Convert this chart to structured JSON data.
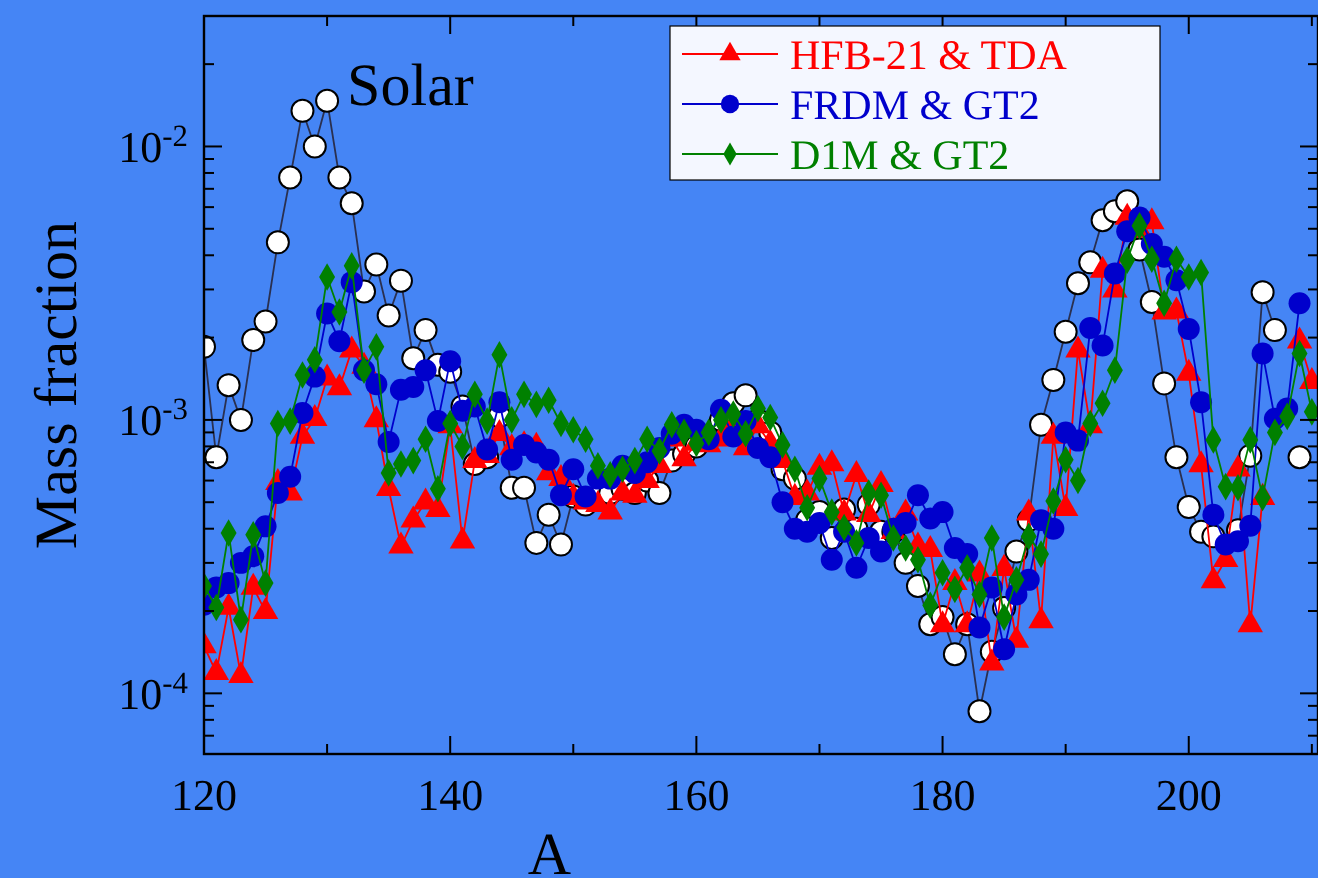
{
  "chart_data": {
    "type": "line",
    "xlabel": "A",
    "ylabel": "Mass fraction",
    "log": "y",
    "grid": false,
    "legend": "top right",
    "xlim": [
      120,
      210.5
    ],
    "ylim": [
      6e-05,
      0.03
    ],
    "xticks": [
      120,
      {
        "value": 130,
        "label": null
      },
      140,
      {
        "value": 150,
        "label": null
      },
      160,
      {
        "value": 170,
        "label": null
      },
      180,
      {
        "value": 190,
        "label": null
      },
      200,
      {
        "value": 210,
        "label": null
      }
    ],
    "yticks": [
      {
        "value": 6e-05,
        "label": null
      },
      {
        "value": 7e-05,
        "label": null
      },
      {
        "value": 8e-05,
        "label": null
      },
      {
        "value": 9e-05,
        "label": null
      },
      {
        "value": 0.0001,
        "label": "10$^{-4}$"
      },
      {
        "value": 0.0002,
        "label": null
      },
      {
        "value": 0.0003,
        "label": null
      },
      {
        "value": 0.0004,
        "label": null
      },
      {
        "value": 0.0005,
        "label": null
      },
      {
        "value": 0.0006,
        "label": null
      },
      {
        "value": 0.0007,
        "label": null
      },
      {
        "value": 0.0008,
        "label": null
      },
      {
        "value": 0.0009,
        "label": null
      },
      {
        "value": 0.001,
        "label": "10$^{-3}$"
      },
      {
        "value": 0.002,
        "label": null
      },
      {
        "value": 0.003,
        "label": null
      },
      {
        "value": 0.004,
        "label": null
      },
      {
        "value": 0.005,
        "label": null
      },
      {
        "value": 0.006,
        "label": null
      },
      {
        "value": 0.007,
        "label": null
      },
      {
        "value": 0.008,
        "label": null
      },
      {
        "value": 0.009,
        "label": null
      },
      {
        "value": 0.01,
        "label": "10$^{-2}$"
      },
      {
        "value": 0.02,
        "label": null
      },
      {
        "value": 0.03,
        "label": null
      }
    ],
    "x": [
      120,
      121,
      122,
      123,
      124,
      125,
      126,
      127,
      128,
      129,
      130,
      131,
      132,
      133,
      134,
      135,
      136,
      137,
      138,
      139,
      140,
      141,
      142,
      143,
      144,
      145,
      146,
      147,
      148,
      149,
      150,
      151,
      152,
      153,
      154,
      155,
      156,
      157,
      158,
      159,
      160,
      161,
      162,
      163,
      164,
      165,
      166,
      167,
      168,
      169,
      170,
      171,
      172,
      173,
      174,
      175,
      176,
      177,
      178,
      179,
      180,
      181,
      182,
      183,
      184,
      185,
      186,
      187,
      188,
      189,
      190,
      191,
      192,
      193,
      194,
      195,
      196,
      197,
      198,
      199,
      200,
      201,
      202,
      203,
      204,
      205,
      206,
      207,
      208,
      209,
      210
    ],
    "annotations": [
      {
        "text": "Solar",
        "x": 130,
        "y": 0.0147
      }
    ],
    "series": [
      {
        "marker": "circle",
        "color": "#ffffff",
        "values": [
          0.00185,
          0.00073,
          0.00134,
          0.001,
          0.00196,
          0.00229,
          0.00446,
          0.0077,
          0.0135,
          0.01,
          0.0147,
          0.0077,
          0.0062,
          0.00295,
          0.0037,
          0.00241,
          0.00323,
          0.00168,
          0.00213,
          0.00159,
          0.0015,
          0.00112,
          0.00069,
          0.00073,
          0.00103,
          0.000565,
          0.000565,
          0.000355,
          0.00045,
          0.00035,
          0.000525,
          0.00049,
          0.00052,
          0.00054,
          0.00056,
          0.00054,
          0.0006,
          0.00054,
          0.00071,
          0.00075,
          0.0008,
          0.00085,
          0.001,
          0.00115,
          0.00123,
          0.001,
          0.0009,
          0.00066,
          0.00061,
          0.00043,
          0.00046,
          0.00037,
          0.00047,
          0.0004,
          0.00049,
          0.00039,
          0.00039,
          0.0003,
          0.000247,
          0.000179,
          0.00019,
          0.000139,
          0.000179,
          8.6e-05,
          0.000142,
          0.000205,
          0.00033,
          0.00043,
          0.00096,
          0.0014,
          0.0021,
          0.00316,
          0.00377,
          0.00537,
          0.0058,
          0.0063,
          0.0042,
          0.0027,
          0.00136,
          0.00073,
          0.00048,
          0.00039,
          0.000375,
          null,
          0.000395,
          0.00074,
          0.00293,
          0.00213,
          null,
          0.00073,
          null
        ]
      },
      {
        "name": "HFB-21 & TDA",
        "marker": "triangle",
        "color": "#ff0000",
        "values": [
          0.000149,
          0.000119,
          0.000206,
          0.000116,
          0.000244,
          0.000199,
          0.00059,
          0.00054,
          0.00087,
          0.00101,
          0.00142,
          0.00131,
          0.0018,
          0.00157,
          0.001,
          0.00056,
          0.000345,
          0.00043,
          0.0005,
          0.00047,
          0.00095,
          0.00036,
          0.00071,
          0.00074,
          0.00089,
          0.00079,
          0.00081,
          0.0008,
          0.00064,
          0.00061,
          0.00052,
          0.0005,
          0.00049,
          0.00046,
          0.00054,
          0.00053,
          0.0006,
          0.00068,
          0.00085,
          0.00072,
          0.00082,
          0.00081,
          0.00085,
          0.00095,
          0.00079,
          0.00095,
          0.00082,
          0.00071,
          0.00052,
          0.00054,
          0.00067,
          0.00069,
          0.000456,
          0.00063,
          0.00045,
          0.00058,
          0.00039,
          0.000456,
          0.000345,
          0.000335,
          0.000178,
          0.000254,
          0.000178,
          0.000273,
          0.000129,
          0.000286,
          0.000156,
          0.000456,
          0.000184,
          0.00087,
          0.000474,
          0.0018,
          0.00095,
          0.00352,
          0.00298,
          0.0055,
          0.00493,
          0.0053,
          0.00248,
          0.0025,
          0.00148,
          0.000684,
          0.000258,
          0.000308,
          0.00066,
          0.000178,
          0.00052,
          null,
          null,
          0.00194,
          0.00138
        ]
      },
      {
        "name": "FRDM & GT2",
        "marker": "circle",
        "color": "#0000cc",
        "values": [
          0.000211,
          0.000244,
          0.000253,
          0.0003,
          0.000317,
          0.000408,
          0.00054,
          0.00062,
          0.00106,
          0.00144,
          0.00245,
          0.00194,
          0.00319,
          0.00152,
          0.00135,
          0.00083,
          0.00129,
          0.00132,
          0.00152,
          0.00099,
          0.00164,
          0.00108,
          0.00112,
          0.00078,
          0.00116,
          0.000715,
          0.00081,
          0.00076,
          0.000715,
          0.00053,
          0.00066,
          0.000525,
          0.00061,
          0.00061,
          0.00068,
          0.00064,
          0.0007,
          0.00079,
          0.00089,
          0.00096,
          0.00092,
          0.00085,
          0.00109,
          0.00087,
          0.00099,
          0.00079,
          0.00073,
          0.0005,
          0.0004,
          0.00039,
          0.00042,
          0.000308,
          0.00039,
          0.000288,
          0.00037,
          0.00033,
          0.0004,
          0.00042,
          0.00053,
          0.000436,
          0.00046,
          0.00034,
          0.000323,
          0.000174,
          0.000244,
          0.000145,
          0.00023,
          0.00026,
          0.00043,
          0.0004,
          0.0009,
          0.00084,
          0.00217,
          0.00187,
          0.00343,
          0.0049,
          0.0055,
          0.0044,
          0.00395,
          0.00324,
          0.00215,
          0.00116,
          0.00045,
          0.00035,
          0.00036,
          0.00041,
          0.00175,
          0.00101,
          0.0011,
          0.00267,
          null
        ]
      },
      {
        "name": "D1M & GT2",
        "marker": "diamond",
        "color": "#008000",
        "values": [
          0.000247,
          0.000206,
          0.000386,
          0.000186,
          0.00038,
          0.000253,
          0.00097,
          0.00099,
          0.00146,
          0.00166,
          0.00333,
          0.00248,
          0.00366,
          0.00152,
          0.00185,
          0.00064,
          0.00069,
          0.00071,
          0.00085,
          0.00056,
          0.00097,
          0.0008,
          0.00124,
          0.00099,
          0.00173,
          0.001,
          0.00124,
          0.00114,
          0.00118,
          0.00097,
          0.00092,
          0.00085,
          0.00068,
          0.00063,
          0.00066,
          0.00071,
          0.00085,
          0.00077,
          0.00096,
          0.0009,
          0.00082,
          0.0009,
          0.001,
          0.00105,
          0.00089,
          0.0011,
          0.00102,
          0.00081,
          0.00066,
          0.000477,
          0.00061,
          0.00046,
          0.000404,
          0.000355,
          0.00054,
          0.00053,
          0.00037,
          0.00034,
          0.000308,
          0.00021,
          0.000276,
          0.00024,
          0.000288,
          0.00023,
          0.00037,
          0.00019,
          0.00026,
          0.000375,
          0.000323,
          0.000505,
          0.000715,
          0.0006,
          0.00097,
          0.00115,
          0.00152,
          0.00384,
          0.00513,
          0.00387,
          0.00267,
          0.00387,
          0.00333,
          0.00346,
          0.000845,
          0.00057,
          0.000565,
          0.000845,
          0.00052,
          0.0009,
          0.00103,
          0.00175,
          0.00107
        ]
      }
    ]
  }
}
